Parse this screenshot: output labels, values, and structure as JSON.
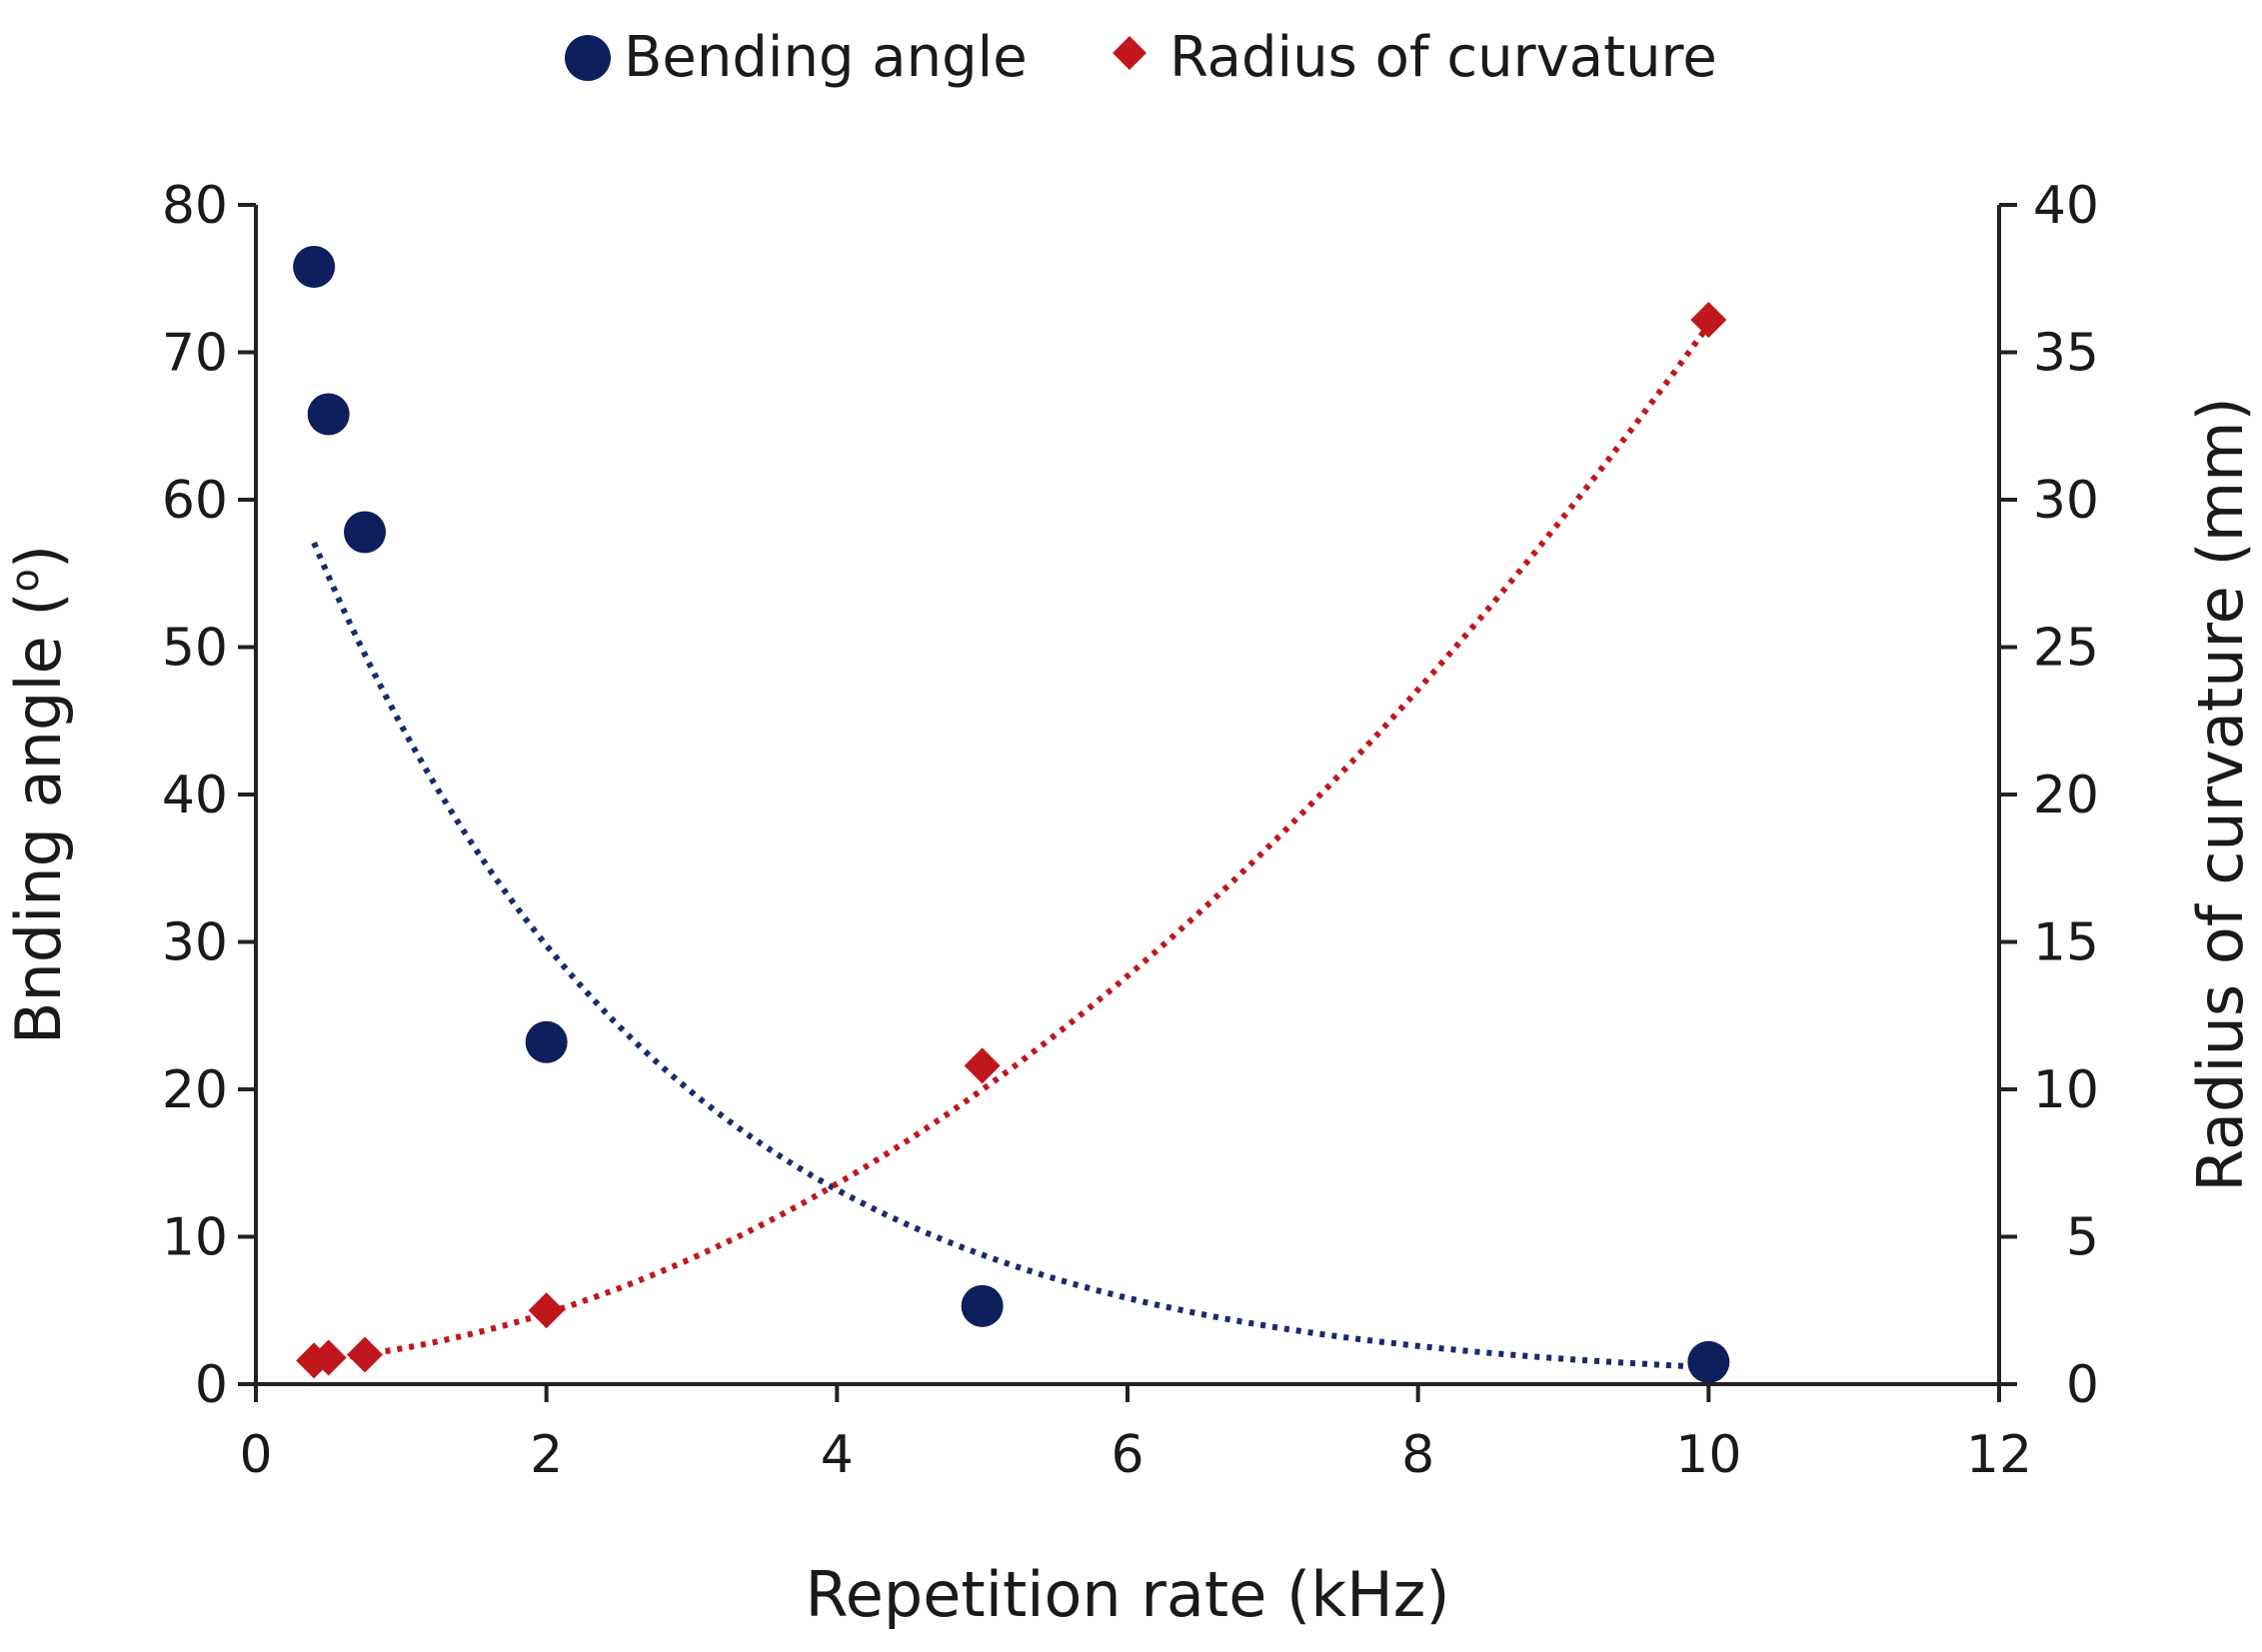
{
  "chart_data": {
    "type": "scatter",
    "title": "",
    "xlabel": "Repetition rate (kHz)",
    "ylabel": "Bnding angle (o)",
    "ylabel_main": "Bnding angle (",
    "ylabel_degree": "o",
    "ylabel_close": ")",
    "y2label": "Radius of curvature (mm)",
    "xlim": [
      0,
      12
    ],
    "ylim": [
      0,
      80
    ],
    "y2lim": [
      0,
      40
    ],
    "x_ticks": [
      "0",
      "2",
      "4",
      "6",
      "8",
      "10",
      "12"
    ],
    "y_ticks": [
      "0",
      "10",
      "20",
      "30",
      "40",
      "50",
      "60",
      "70",
      "80"
    ],
    "y2_ticks": [
      "0",
      "5",
      "10",
      "15",
      "20",
      "25",
      "30",
      "35",
      "40"
    ],
    "legend_position": "top-center",
    "grid": false,
    "series": [
      {
        "name": "Bending angle",
        "axis": "left",
        "marker": "circle",
        "color": "#0d1f5c",
        "x": [
          0.4,
          0.5,
          0.75,
          2,
          5,
          10
        ],
        "y": [
          75.8,
          65.8,
          57.8,
          23.2,
          5.3,
          1.5
        ],
        "trendline": {
          "style": "dotted",
          "color": "#1a2a6c",
          "model": "exponential",
          "a": 67.17,
          "b": -0.407,
          "x_range": [
            0.4,
            10
          ]
        }
      },
      {
        "name": "Radius of curvature",
        "axis": "right",
        "marker": "diamond",
        "color": "#c0171c",
        "x": [
          0.4,
          0.5,
          0.75,
          2,
          5,
          10
        ],
        "y": [
          0.8,
          0.9,
          1.0,
          2.5,
          10.8,
          36.1
        ],
        "trendline": {
          "style": "dotted",
          "color": "#c0171c",
          "model": "polynomial-2",
          "coef": [
            0.6755,
            0.2,
            0.3325
          ],
          "x_range": [
            0.4,
            10
          ]
        }
      }
    ]
  }
}
